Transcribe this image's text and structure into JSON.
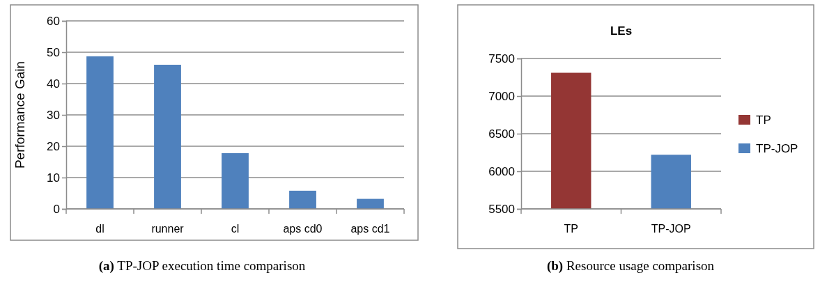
{
  "chart_data": [
    {
      "type": "bar",
      "categories": [
        "dl",
        "runner",
        "cl",
        "aps cd0",
        "aps cd1"
      ],
      "values": [
        48.7,
        46.0,
        17.8,
        5.8,
        3.2
      ],
      "color": "#4f81bd",
      "ylabel": "Performance Gain",
      "ylim": [
        0,
        60
      ],
      "yticks": [
        0,
        10,
        20,
        30,
        40,
        50,
        60
      ],
      "grid": "y",
      "annotations": [
        "(a) TP-JOP execution time comparison"
      ]
    },
    {
      "type": "bar",
      "title": "LEs",
      "categories": [
        "TP",
        "TP-JOP"
      ],
      "series": [
        {
          "name": "TP",
          "color": "#943634",
          "values": [
            7310,
            null
          ]
        },
        {
          "name": "TP-JOP",
          "color": "#4f81bd",
          "values": [
            null,
            6220
          ]
        }
      ],
      "ylim": [
        5500,
        7500
      ],
      "yticks": [
        5500,
        6000,
        6500,
        7000,
        7500
      ],
      "grid": "y",
      "legend": "right",
      "annotations": [
        "(b) Resource usage comparison"
      ]
    }
  ]
}
